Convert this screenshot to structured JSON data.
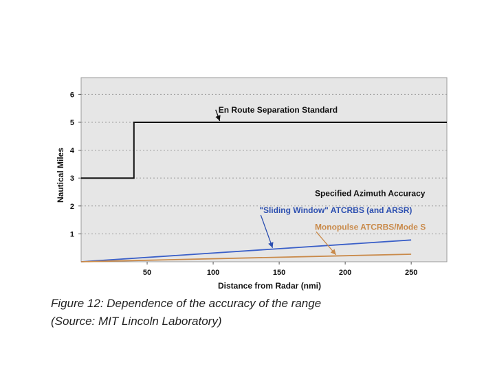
{
  "chart_data": {
    "type": "line",
    "xlabel": "Distance from Radar (nmi)",
    "ylabel": "Nautical Miles",
    "xlim": [
      0,
      277
    ],
    "ylim": [
      0,
      6.6
    ],
    "x_ticks": [
      50,
      100,
      150,
      200,
      250
    ],
    "y_ticks": [
      1,
      2,
      3,
      4,
      5,
      6
    ],
    "grid": "horizontal dotted",
    "series": [
      {
        "name": "En Route Separation Standard",
        "color": "#111111",
        "step": true,
        "x": [
          0,
          40,
          40,
          277
        ],
        "y": [
          3,
          3,
          5,
          5
        ]
      },
      {
        "name": "\"Sliding Window\" ATCRBS (and ARSR)",
        "color": "#3a5fc8",
        "x": [
          0,
          250
        ],
        "y": [
          0,
          0.78
        ]
      },
      {
        "name": "Monopulse ATCRBS/Mode S",
        "color": "#c98a4a",
        "x": [
          0,
          250
        ],
        "y": [
          0,
          0.27
        ]
      }
    ],
    "annotations": [
      {
        "text": "En Route Separation Standard",
        "color": "#111111",
        "x": 104,
        "y": 5.35,
        "arrow_x": 105,
        "arrow_y": 5.0
      },
      {
        "text": "Specified Azimuth Accuracy",
        "color": "#111111",
        "x": 177,
        "y": 2.35
      },
      {
        "text": "\"Sliding Window\" ATCRBS (and ARSR)",
        "color": "#2c4fb0",
        "x": 135,
        "y": 1.75,
        "arrow_x": 145,
        "arrow_y": 0.45
      },
      {
        "text": "Monopulse ATCRBS/Mode S",
        "color": "#c98a4a",
        "x": 177,
        "y": 1.15,
        "arrow_x": 193,
        "arrow_y": 0.2
      }
    ]
  },
  "caption": {
    "line1": "Figure 12: Dependence of the accuracy of the range",
    "line2": "(Source: MIT Lincoln Laboratory)"
  }
}
